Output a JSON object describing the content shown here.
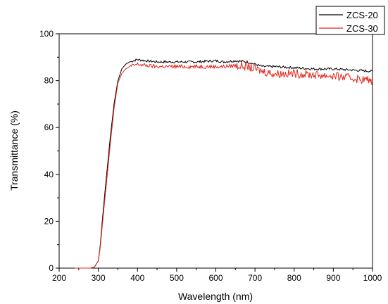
{
  "chart_data": {
    "type": "line",
    "xlabel": "Wavelength (nm)",
    "ylabel": "Transmittance (%)",
    "xlim": [
      200,
      1000
    ],
    "ylim": [
      0,
      100
    ],
    "x_ticks": [
      200,
      300,
      400,
      500,
      600,
      700,
      800,
      900,
      1000
    ],
    "y_ticks": [
      0,
      20,
      40,
      60,
      80,
      100
    ],
    "x_tick_labels": [
      "200",
      "300",
      "400",
      "500",
      "600",
      "700",
      "800",
      "900",
      "1000"
    ],
    "y_tick_labels": [
      "0",
      "20",
      "40",
      "60",
      "80",
      "100"
    ],
    "grid": false,
    "legend_position": "top-right",
    "series": [
      {
        "name": "ZCS-20",
        "color": "#000000",
        "x": [
          240,
          280,
          290,
          300,
          305,
          310,
          320,
          330,
          340,
          350,
          360,
          370,
          380,
          390,
          400,
          420,
          450,
          500,
          550,
          600,
          620,
          650,
          680,
          700,
          720,
          750,
          800,
          850,
          900,
          950,
          1000
        ],
        "y": [
          0,
          0,
          0.5,
          3,
          10,
          20,
          38,
          55,
          70,
          80,
          85,
          87,
          88,
          88.5,
          89,
          88.5,
          88,
          88,
          88,
          88.5,
          88,
          88.5,
          88,
          87,
          86,
          86,
          85.5,
          85,
          85,
          84.5,
          84
        ]
      },
      {
        "name": "ZCS-30",
        "color": "#e2231a",
        "x": [
          240,
          280,
          290,
          300,
          305,
          310,
          320,
          330,
          340,
          350,
          360,
          370,
          380,
          390,
          400,
          420,
          450,
          500,
          550,
          600,
          620,
          650,
          680,
          700,
          720,
          750,
          800,
          850,
          900,
          950,
          1000
        ],
        "y": [
          0,
          0,
          0.5,
          3,
          9,
          18,
          35,
          52,
          68,
          79,
          83,
          85,
          86,
          86.5,
          87,
          86.5,
          86,
          86,
          86,
          86,
          86,
          86.5,
          86,
          85,
          84,
          83,
          83,
          82.5,
          82,
          81,
          80
        ]
      }
    ]
  }
}
